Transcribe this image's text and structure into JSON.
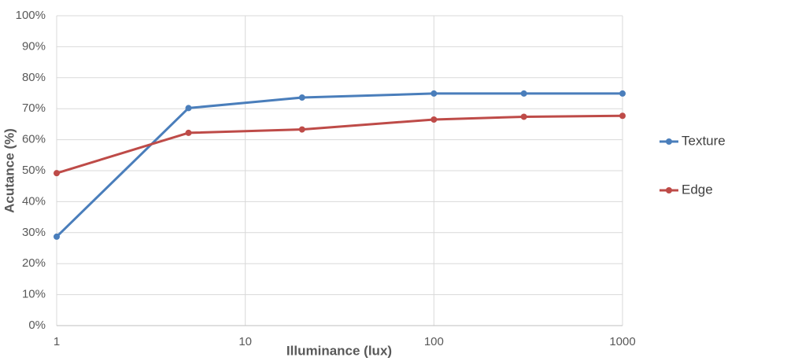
{
  "chart_data": {
    "type": "line",
    "xlabel": "Illuminance (lux)",
    "ylabel": "Acutance (%)",
    "x": [
      1,
      5,
      20,
      100,
      300,
      1000
    ],
    "series": [
      {
        "name": "Texture",
        "color": "#4a7ebb",
        "values": [
          28.7,
          70.2,
          73.6,
          74.9,
          74.9,
          74.9
        ]
      },
      {
        "name": "Edge",
        "color": "#be4b48",
        "values": [
          49.2,
          62.2,
          63.3,
          66.5,
          67.4,
          67.7
        ]
      }
    ],
    "xscale": "log",
    "xlim": [
      1,
      1000
    ],
    "xticks": [
      1,
      10,
      100,
      1000
    ],
    "ylim": [
      0,
      100
    ],
    "yticks": [
      {
        "value": 0,
        "label": "0%"
      },
      {
        "value": 10,
        "label": "10%"
      },
      {
        "value": 20,
        "label": "20%"
      },
      {
        "value": 30,
        "label": "30%"
      },
      {
        "value": 40,
        "label": "40%"
      },
      {
        "value": 50,
        "label": "50%"
      },
      {
        "value": 60,
        "label": "60%"
      },
      {
        "value": 70,
        "label": "70%"
      },
      {
        "value": 80,
        "label": "80%"
      },
      {
        "value": 90,
        "label": "90%"
      },
      {
        "value": 100,
        "label": "100%"
      }
    ],
    "grid": true,
    "legend": "right"
  }
}
